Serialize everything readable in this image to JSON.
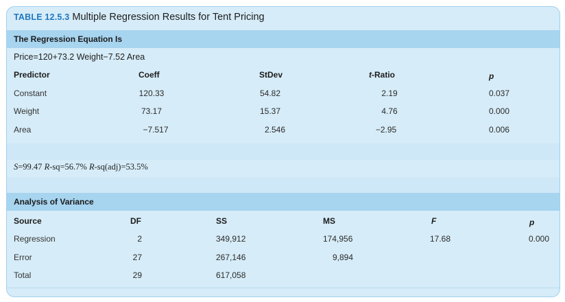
{
  "table": {
    "number": "TABLE 12.5.3",
    "title": "Multiple Regression Results for Tent Pricing"
  },
  "regression": {
    "section_title": "The Regression Equation Is",
    "equation": "Price=120+73.2 Weight−7.52 Area",
    "headers": [
      "Predictor",
      "Coeff",
      "StDev",
      "t-Ratio",
      "p"
    ],
    "rows": [
      [
        "Constant",
        "120.33",
        "54.82",
        "2.19",
        "0.037"
      ],
      [
        "Weight",
        "73.17",
        "15.37",
        "4.76",
        "0.000"
      ],
      [
        "Area",
        "−7.517",
        "2.546",
        "−2.95",
        "0.006"
      ]
    ],
    "fit_stats": {
      "s_label": "S",
      "s_value": "=99.47 ",
      "rsq_label": "R",
      "rsq_value": "-sq=56.7% ",
      "rsqadj_label": "R",
      "rsqadj_value": "-sq(adj)=53.5%"
    }
  },
  "anova": {
    "section_title": "Analysis of Variance",
    "headers": [
      "Source",
      "DF",
      "SS",
      "MS",
      "F",
      "p"
    ],
    "rows": [
      [
        "Regression",
        "2",
        "349,912",
        "174,956",
        "17.68",
        "0.000"
      ],
      [
        "Error",
        "27",
        "267,146",
        "9,894",
        "",
        ""
      ],
      [
        "Total",
        "29",
        "617,058",
        "",
        "",
        ""
      ]
    ]
  }
}
